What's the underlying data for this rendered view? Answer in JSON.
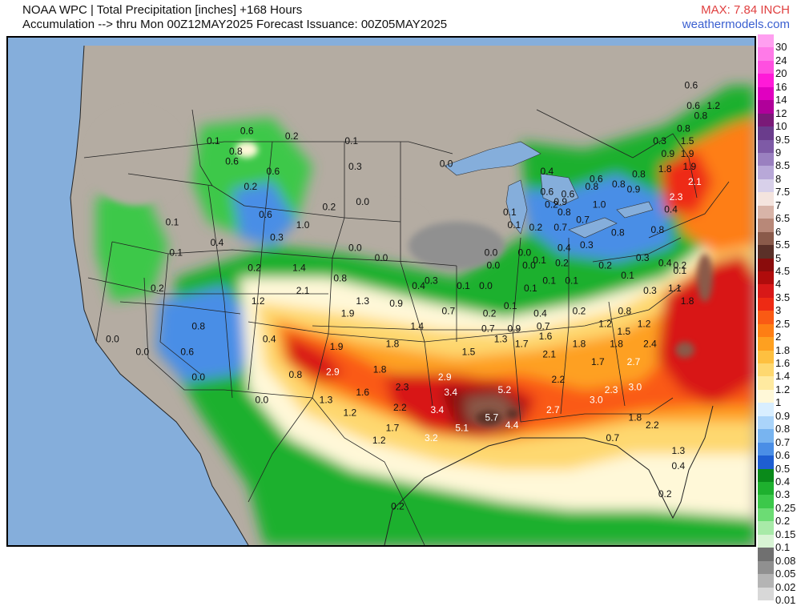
{
  "header": {
    "line1": "NOAA WPC | Total Precipitation [inches] +168 Hours",
    "line2": "Accumulation --> thru Mon 00Z12MAY2025   Forecast Issuance: 00Z05MAY2025",
    "max": "MAX: 7.84 INCH",
    "brand": "weathermodels.com"
  },
  "legend": {
    "items": [
      {
        "label": "30",
        "color": "#ff9ff0"
      },
      {
        "label": "24",
        "color": "#ff7ae8"
      },
      {
        "label": "20",
        "color": "#ff4fe0"
      },
      {
        "label": "16",
        "color": "#ff1ad8"
      },
      {
        "label": "14",
        "color": "#e000c0"
      },
      {
        "label": "12",
        "color": "#b0009a"
      },
      {
        "label": "10",
        "color": "#7a1a78"
      },
      {
        "label": "9.5",
        "color": "#6a3c8c"
      },
      {
        "label": "9",
        "color": "#7e5aa6"
      },
      {
        "label": "8.5",
        "color": "#9a80c0"
      },
      {
        "label": "8",
        "color": "#b8a8d8"
      },
      {
        "label": "7.5",
        "color": "#d8d0ea"
      },
      {
        "label": "7",
        "color": "#f4e4de"
      },
      {
        "label": "6.5",
        "color": "#d8b4a8"
      },
      {
        "label": "6",
        "color": "#b88878"
      },
      {
        "label": "5.5",
        "color": "#8a5a4a"
      },
      {
        "label": "5",
        "color": "#5a3028"
      },
      {
        "label": "4.5",
        "color": "#8a0c0c"
      },
      {
        "label": "4",
        "color": "#b00c0c"
      },
      {
        "label": "3.5",
        "color": "#d81818"
      },
      {
        "label": "3",
        "color": "#ee2a14"
      },
      {
        "label": "2.5",
        "color": "#fa5a14"
      },
      {
        "label": "2",
        "color": "#fe7e14"
      },
      {
        "label": "1.8",
        "color": "#fea020"
      },
      {
        "label": "1.6",
        "color": "#fec040"
      },
      {
        "label": "1.4",
        "color": "#fed870"
      },
      {
        "label": "1.2",
        "color": "#ffeaa0"
      },
      {
        "label": "1",
        "color": "#fff8d8"
      },
      {
        "label": "0.9",
        "color": "#d8eeff"
      },
      {
        "label": "0.8",
        "color": "#aad4fa"
      },
      {
        "label": "0.7",
        "color": "#78b4f0"
      },
      {
        "label": "0.6",
        "color": "#4a8ee6"
      },
      {
        "label": "0.5",
        "color": "#1e5ed2"
      },
      {
        "label": "0.4",
        "color": "#0a8a1a"
      },
      {
        "label": "0.3",
        "color": "#1eb02e"
      },
      {
        "label": "0.25",
        "color": "#3cc84a"
      },
      {
        "label": "0.2",
        "color": "#6cdc74"
      },
      {
        "label": "0.15",
        "color": "#a8eaa8"
      },
      {
        "label": "0.1",
        "color": "#d8f4d4"
      },
      {
        "label": "0.08",
        "color": "#707070"
      },
      {
        "label": "0.05",
        "color": "#909090"
      },
      {
        "label": "0.02",
        "color": "#b4b4b4"
      },
      {
        "label": "0.01",
        "color": "#d8d8d8"
      }
    ]
  },
  "map": {
    "values": [
      {
        "t": "0.6",
        "x": 0.32,
        "y": 0.19,
        "c": "dark"
      },
      {
        "t": "0.2",
        "x": 0.38,
        "y": 0.2,
        "c": "dark"
      },
      {
        "t": "0.1",
        "x": 0.46,
        "y": 0.21,
        "c": "dark"
      },
      {
        "t": "0.1",
        "x": 0.275,
        "y": 0.21,
        "c": "dark"
      },
      {
        "t": "0.8",
        "x": 0.305,
        "y": 0.23,
        "c": "dark"
      },
      {
        "t": "0.6",
        "x": 0.3,
        "y": 0.25,
        "c": "dark"
      },
      {
        "t": "0.6",
        "x": 0.355,
        "y": 0.27,
        "c": "dark"
      },
      {
        "t": "0.3",
        "x": 0.465,
        "y": 0.26,
        "c": "dark"
      },
      {
        "t": "0.2",
        "x": 0.325,
        "y": 0.3,
        "c": "dark"
      },
      {
        "t": "0.2",
        "x": 0.43,
        "y": 0.34,
        "c": "dark"
      },
      {
        "t": "0.0",
        "x": 0.475,
        "y": 0.33,
        "c": "dark"
      },
      {
        "t": "0.6",
        "x": 0.345,
        "y": 0.355,
        "c": "dark"
      },
      {
        "t": "1.0",
        "x": 0.395,
        "y": 0.375,
        "c": "dark"
      },
      {
        "t": "0.3",
        "x": 0.36,
        "y": 0.4,
        "c": "dark"
      },
      {
        "t": "0.1",
        "x": 0.22,
        "y": 0.37,
        "c": "dark"
      },
      {
        "t": "0.4",
        "x": 0.28,
        "y": 0.41,
        "c": "dark"
      },
      {
        "t": "0.1",
        "x": 0.225,
        "y": 0.43,
        "c": "dark"
      },
      {
        "t": "0.2",
        "x": 0.33,
        "y": 0.46,
        "c": "dark"
      },
      {
        "t": "0.0",
        "x": 0.465,
        "y": 0.42,
        "c": "dark"
      },
      {
        "t": "0.0",
        "x": 0.5,
        "y": 0.44,
        "c": "dark"
      },
      {
        "t": "1.4",
        "x": 0.39,
        "y": 0.46,
        "c": "dark"
      },
      {
        "t": "0.8",
        "x": 0.445,
        "y": 0.48,
        "c": "dark"
      },
      {
        "t": "2.1",
        "x": 0.395,
        "y": 0.505,
        "c": "dark"
      },
      {
        "t": "1.2",
        "x": 0.335,
        "y": 0.525,
        "c": "dark"
      },
      {
        "t": "1.3",
        "x": 0.475,
        "y": 0.525,
        "c": "dark"
      },
      {
        "t": "0.9",
        "x": 0.52,
        "y": 0.53,
        "c": "dark"
      },
      {
        "t": "1.9",
        "x": 0.455,
        "y": 0.55,
        "c": "dark"
      },
      {
        "t": "0.2",
        "x": 0.2,
        "y": 0.5,
        "c": "dark"
      },
      {
        "t": "0.8",
        "x": 0.255,
        "y": 0.575,
        "c": "dark"
      },
      {
        "t": "0.0",
        "x": 0.14,
        "y": 0.6,
        "c": "dark"
      },
      {
        "t": "0.6",
        "x": 0.24,
        "y": 0.625,
        "c": "dark"
      },
      {
        "t": "0.0",
        "x": 0.18,
        "y": 0.625,
        "c": "dark"
      },
      {
        "t": "0.4",
        "x": 0.35,
        "y": 0.6,
        "c": "dark"
      },
      {
        "t": "0.0",
        "x": 0.255,
        "y": 0.675,
        "c": "dark"
      },
      {
        "t": "0.0",
        "x": 0.34,
        "y": 0.72,
        "c": "dark"
      },
      {
        "t": "1.9",
        "x": 0.44,
        "y": 0.615,
        "c": "dark"
      },
      {
        "t": "1.8",
        "x": 0.515,
        "y": 0.61,
        "c": "dark"
      },
      {
        "t": "1.4",
        "x": 0.548,
        "y": 0.575,
        "c": "dark"
      },
      {
        "t": "0.7",
        "x": 0.59,
        "y": 0.545,
        "c": "dark"
      },
      {
        "t": "2.9",
        "x": 0.435,
        "y": 0.665,
        "c": "white"
      },
      {
        "t": "0.8",
        "x": 0.385,
        "y": 0.67,
        "c": "dark"
      },
      {
        "t": "1.8",
        "x": 0.498,
        "y": 0.66,
        "c": "dark"
      },
      {
        "t": "1.6",
        "x": 0.475,
        "y": 0.705,
        "c": "dark"
      },
      {
        "t": "2.3",
        "x": 0.528,
        "y": 0.695,
        "c": "dark"
      },
      {
        "t": "2.9",
        "x": 0.585,
        "y": 0.675,
        "c": "white"
      },
      {
        "t": "1.5",
        "x": 0.617,
        "y": 0.625,
        "c": "dark"
      },
      {
        "t": "1.3",
        "x": 0.426,
        "y": 0.72,
        "c": "dark"
      },
      {
        "t": "1.2",
        "x": 0.458,
        "y": 0.745,
        "c": "dark"
      },
      {
        "t": "2.2",
        "x": 0.525,
        "y": 0.735,
        "c": "dark"
      },
      {
        "t": "3.4",
        "x": 0.593,
        "y": 0.705,
        "c": "white"
      },
      {
        "t": "3.4",
        "x": 0.575,
        "y": 0.74,
        "c": "white"
      },
      {
        "t": "1.7",
        "x": 0.515,
        "y": 0.775,
        "c": "dark"
      },
      {
        "t": "1.2",
        "x": 0.497,
        "y": 0.8,
        "c": "dark"
      },
      {
        "t": "3.2",
        "x": 0.567,
        "y": 0.795,
        "c": "white"
      },
      {
        "t": "5.1",
        "x": 0.608,
        "y": 0.775,
        "c": "white"
      },
      {
        "t": "5.7",
        "x": 0.648,
        "y": 0.755,
        "c": "white"
      },
      {
        "t": "5.2",
        "x": 0.665,
        "y": 0.7,
        "c": "white"
      },
      {
        "t": "4.4",
        "x": 0.675,
        "y": 0.77,
        "c": "white"
      },
      {
        "t": "2.7",
        "x": 0.73,
        "y": 0.74,
        "c": "white"
      },
      {
        "t": "2.2",
        "x": 0.737,
        "y": 0.68,
        "c": "dark"
      },
      {
        "t": "2.1",
        "x": 0.725,
        "y": 0.63,
        "c": "dark"
      },
      {
        "t": "1.7",
        "x": 0.688,
        "y": 0.61,
        "c": "dark"
      },
      {
        "t": "1.3",
        "x": 0.66,
        "y": 0.6,
        "c": "dark"
      },
      {
        "t": "1.6",
        "x": 0.72,
        "y": 0.595,
        "c": "dark"
      },
      {
        "t": "1.8",
        "x": 0.765,
        "y": 0.61,
        "c": "dark"
      },
      {
        "t": "1.7",
        "x": 0.79,
        "y": 0.645,
        "c": "dark"
      },
      {
        "t": "3.0",
        "x": 0.788,
        "y": 0.72,
        "c": "white"
      },
      {
        "t": "2.3",
        "x": 0.808,
        "y": 0.7,
        "c": "white"
      },
      {
        "t": "3.0",
        "x": 0.84,
        "y": 0.695,
        "c": "white"
      },
      {
        "t": "1.8",
        "x": 0.84,
        "y": 0.755,
        "c": "dark"
      },
      {
        "t": "2.2",
        "x": 0.863,
        "y": 0.77,
        "c": "dark"
      },
      {
        "t": "0.7",
        "x": 0.81,
        "y": 0.795,
        "c": "dark"
      },
      {
        "t": "1.3",
        "x": 0.898,
        "y": 0.82,
        "c": "dark"
      },
      {
        "t": "0.4",
        "x": 0.898,
        "y": 0.85,
        "c": "dark"
      },
      {
        "t": "0.2",
        "x": 0.88,
        "y": 0.905,
        "c": "dark"
      },
      {
        "t": "0.2",
        "x": 0.522,
        "y": 0.93,
        "c": "dark"
      },
      {
        "t": "2.7",
        "x": 0.838,
        "y": 0.645,
        "c": "white"
      },
      {
        "t": "2.4",
        "x": 0.86,
        "y": 0.61,
        "c": "dark"
      },
      {
        "t": "1.8",
        "x": 0.815,
        "y": 0.61,
        "c": "dark"
      },
      {
        "t": "1.5",
        "x": 0.825,
        "y": 0.585,
        "c": "dark"
      },
      {
        "t": "1.2",
        "x": 0.8,
        "y": 0.57,
        "c": "dark"
      },
      {
        "t": "1.2",
        "x": 0.852,
        "y": 0.57,
        "c": "dark"
      },
      {
        "t": "0.8",
        "x": 0.826,
        "y": 0.545,
        "c": "dark"
      },
      {
        "t": "0.2",
        "x": 0.765,
        "y": 0.545,
        "c": "dark"
      },
      {
        "t": "0.7",
        "x": 0.717,
        "y": 0.575,
        "c": "dark"
      },
      {
        "t": "0.4",
        "x": 0.713,
        "y": 0.55,
        "c": "dark"
      },
      {
        "t": "0.2",
        "x": 0.645,
        "y": 0.55,
        "c": "dark"
      },
      {
        "t": "0.7",
        "x": 0.643,
        "y": 0.58,
        "c": "dark"
      },
      {
        "t": "0.9",
        "x": 0.678,
        "y": 0.58,
        "c": "dark"
      },
      {
        "t": "0.1",
        "x": 0.673,
        "y": 0.535,
        "c": "dark"
      },
      {
        "t": "0.3",
        "x": 0.567,
        "y": 0.485,
        "c": "dark"
      },
      {
        "t": "0.4",
        "x": 0.55,
        "y": 0.495,
        "c": "dark"
      },
      {
        "t": "0.1",
        "x": 0.61,
        "y": 0.495,
        "c": "dark"
      },
      {
        "t": "0.0",
        "x": 0.64,
        "y": 0.495,
        "c": "dark"
      },
      {
        "t": "0.0",
        "x": 0.647,
        "y": 0.43,
        "c": "dark"
      },
      {
        "t": "0.0",
        "x": 0.65,
        "y": 0.455,
        "c": "dark"
      },
      {
        "t": "0.0",
        "x": 0.692,
        "y": 0.43,
        "c": "dark"
      },
      {
        "t": "0.0",
        "x": 0.698,
        "y": 0.455,
        "c": "dark"
      },
      {
        "t": "0.1",
        "x": 0.712,
        "y": 0.445,
        "c": "dark"
      },
      {
        "t": "0.1",
        "x": 0.725,
        "y": 0.485,
        "c": "dark"
      },
      {
        "t": "0.1",
        "x": 0.755,
        "y": 0.485,
        "c": "dark"
      },
      {
        "t": "0.2",
        "x": 0.742,
        "y": 0.45,
        "c": "dark"
      },
      {
        "t": "0.1",
        "x": 0.7,
        "y": 0.5,
        "c": "dark"
      },
      {
        "t": "0.4",
        "x": 0.745,
        "y": 0.42,
        "c": "dark"
      },
      {
        "t": "0.3",
        "x": 0.775,
        "y": 0.415,
        "c": "dark"
      },
      {
        "t": "0.2",
        "x": 0.8,
        "y": 0.455,
        "c": "dark"
      },
      {
        "t": "0.1",
        "x": 0.83,
        "y": 0.475,
        "c": "dark"
      },
      {
        "t": "0.3",
        "x": 0.86,
        "y": 0.505,
        "c": "dark"
      },
      {
        "t": "0.3",
        "x": 0.85,
        "y": 0.44,
        "c": "dark"
      },
      {
        "t": "0.4",
        "x": 0.88,
        "y": 0.45,
        "c": "dark"
      },
      {
        "t": "0.2",
        "x": 0.9,
        "y": 0.455,
        "c": "dark"
      },
      {
        "t": "1.1",
        "x": 0.893,
        "y": 0.5,
        "c": "dark"
      },
      {
        "t": "1.8",
        "x": 0.91,
        "y": 0.525,
        "c": "dark"
      },
      {
        "t": "0.8",
        "x": 0.817,
        "y": 0.39,
        "c": "dark"
      },
      {
        "t": "0.8",
        "x": 0.87,
        "y": 0.385,
        "c": "dark"
      },
      {
        "t": "0.4",
        "x": 0.888,
        "y": 0.345,
        "c": "dark"
      },
      {
        "t": "0.1",
        "x": 0.672,
        "y": 0.35,
        "c": "dark"
      },
      {
        "t": "0.1",
        "x": 0.678,
        "y": 0.375,
        "c": "dark"
      },
      {
        "t": "0.2",
        "x": 0.707,
        "y": 0.38,
        "c": "dark"
      },
      {
        "t": "0.7",
        "x": 0.74,
        "y": 0.38,
        "c": "dark"
      },
      {
        "t": "0.7",
        "x": 0.77,
        "y": 0.365,
        "c": "dark"
      },
      {
        "t": "0.8",
        "x": 0.745,
        "y": 0.35,
        "c": "dark"
      },
      {
        "t": "0.9",
        "x": 0.74,
        "y": 0.33,
        "c": "dark"
      },
      {
        "t": "0.6",
        "x": 0.722,
        "y": 0.31,
        "c": "dark"
      },
      {
        "t": "0.6",
        "x": 0.75,
        "y": 0.315,
        "c": "dark"
      },
      {
        "t": "0.2",
        "x": 0.728,
        "y": 0.335,
        "c": "dark"
      },
      {
        "t": "1.0",
        "x": 0.792,
        "y": 0.335,
        "c": "dark"
      },
      {
        "t": "0.8",
        "x": 0.818,
        "y": 0.295,
        "c": "dark"
      },
      {
        "t": "0.8",
        "x": 0.845,
        "y": 0.275,
        "c": "dark"
      },
      {
        "t": "0.9",
        "x": 0.838,
        "y": 0.305,
        "c": "dark"
      },
      {
        "t": "0.6",
        "x": 0.788,
        "y": 0.285,
        "c": "dark"
      },
      {
        "t": "0.8",
        "x": 0.782,
        "y": 0.3,
        "c": "dark"
      },
      {
        "t": "0.4",
        "x": 0.722,
        "y": 0.27,
        "c": "dark"
      },
      {
        "t": "0.0",
        "x": 0.587,
        "y": 0.255,
        "c": "dark"
      },
      {
        "t": "0.3",
        "x": 0.873,
        "y": 0.21,
        "c": "dark"
      },
      {
        "t": "0.9",
        "x": 0.884,
        "y": 0.235,
        "c": "dark"
      },
      {
        "t": "1.9",
        "x": 0.91,
        "y": 0.235,
        "c": "dark"
      },
      {
        "t": "1.8",
        "x": 0.88,
        "y": 0.265,
        "c": "dark"
      },
      {
        "t": "1.9",
        "x": 0.913,
        "y": 0.26,
        "c": "dark"
      },
      {
        "t": "2.1",
        "x": 0.92,
        "y": 0.29,
        "c": "white"
      },
      {
        "t": "2.3",
        "x": 0.895,
        "y": 0.32,
        "c": "white"
      },
      {
        "t": "0.8",
        "x": 0.905,
        "y": 0.185,
        "c": "dark"
      },
      {
        "t": "1.5",
        "x": 0.91,
        "y": 0.21,
        "c": "dark"
      },
      {
        "t": "0.8",
        "x": 0.928,
        "y": 0.16,
        "c": "dark"
      },
      {
        "t": "0.6",
        "x": 0.918,
        "y": 0.14,
        "c": "dark"
      },
      {
        "t": "0.6",
        "x": 0.915,
        "y": 0.1,
        "c": "dark"
      },
      {
        "t": "1.2",
        "x": 0.945,
        "y": 0.14,
        "c": "dark"
      },
      {
        "t": "0.1",
        "x": 0.9,
        "y": 0.465,
        "c": "dark"
      }
    ]
  }
}
